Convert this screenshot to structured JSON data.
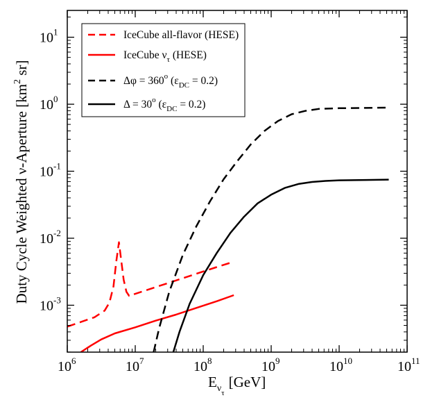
{
  "chart_data": {
    "type": "line",
    "title": "",
    "xlabel": {
      "base": "E",
      "sub": "ν",
      "subsub": "τ",
      "unit": "[GeV]"
    },
    "ylabel": {
      "text": "Duty Cycle Weighted ν-Aperture [km",
      "exp": "2",
      "tail": " sr]"
    },
    "x_log_range": [
      6,
      11
    ],
    "y_log_range": [
      -3.7,
      1.4
    ],
    "x_tick_exponents": [
      "6",
      "7",
      "8",
      "9",
      "10",
      "11"
    ],
    "y_tick_exponents": [
      "-3",
      "-2",
      "-1",
      "0",
      "1"
    ],
    "tick_base": "10",
    "grid": false,
    "legend_position": "top-left",
    "series": [
      {
        "name": "IceCube all-flavor (HESE)",
        "color": "#ff0000",
        "dash": "dashed",
        "points": [
          [
            6.0,
            -3.32
          ],
          [
            6.2,
            -3.25
          ],
          [
            6.4,
            -3.18
          ],
          [
            6.55,
            -3.08
          ],
          [
            6.62,
            -2.96
          ],
          [
            6.68,
            -2.72
          ],
          [
            6.72,
            -2.35
          ],
          [
            6.76,
            -2.06
          ],
          [
            6.79,
            -2.3
          ],
          [
            6.83,
            -2.62
          ],
          [
            6.87,
            -2.8
          ],
          [
            6.91,
            -2.86
          ],
          [
            7.0,
            -2.83
          ],
          [
            7.3,
            -2.73
          ],
          [
            7.6,
            -2.63
          ],
          [
            7.9,
            -2.53
          ],
          [
            8.2,
            -2.43
          ],
          [
            8.45,
            -2.35
          ]
        ]
      },
      {
        "name": "IceCube ν_τ (HESE)",
        "color": "#ff0000",
        "dash": "solid",
        "points": [
          [
            6.2,
            -3.7
          ],
          [
            6.35,
            -3.6
          ],
          [
            6.5,
            -3.51
          ],
          [
            6.7,
            -3.42
          ],
          [
            7.0,
            -3.33
          ],
          [
            7.3,
            -3.23
          ],
          [
            7.6,
            -3.14
          ],
          [
            7.9,
            -3.04
          ],
          [
            8.2,
            -2.94
          ],
          [
            8.45,
            -2.85
          ]
        ]
      },
      {
        "name": "Δφ = 360° (ε_DC = 0.2)",
        "color": "#000000",
        "dash": "dashed",
        "points": [
          [
            7.27,
            -3.7
          ],
          [
            7.35,
            -3.35
          ],
          [
            7.5,
            -2.8
          ],
          [
            7.7,
            -2.25
          ],
          [
            7.9,
            -1.82
          ],
          [
            8.1,
            -1.45
          ],
          [
            8.3,
            -1.12
          ],
          [
            8.5,
            -0.85
          ],
          [
            8.7,
            -0.6
          ],
          [
            8.9,
            -0.4
          ],
          [
            9.1,
            -0.25
          ],
          [
            9.3,
            -0.15
          ],
          [
            9.5,
            -0.1
          ],
          [
            9.7,
            -0.07
          ],
          [
            10.0,
            -0.06
          ],
          [
            10.4,
            -0.055
          ],
          [
            10.73,
            -0.05
          ]
        ]
      },
      {
        "name": "Δ = 30° (ε_DC = 0.2)",
        "color": "#000000",
        "dash": "solid",
        "points": [
          [
            7.56,
            -3.7
          ],
          [
            7.65,
            -3.4
          ],
          [
            7.8,
            -2.98
          ],
          [
            8.0,
            -2.55
          ],
          [
            8.2,
            -2.22
          ],
          [
            8.4,
            -1.92
          ],
          [
            8.6,
            -1.68
          ],
          [
            8.8,
            -1.48
          ],
          [
            9.0,
            -1.35
          ],
          [
            9.2,
            -1.25
          ],
          [
            9.4,
            -1.19
          ],
          [
            9.6,
            -1.16
          ],
          [
            9.8,
            -1.145
          ],
          [
            10.0,
            -1.135
          ],
          [
            10.4,
            -1.13
          ],
          [
            10.73,
            -1.125
          ]
        ]
      }
    ],
    "legend": [
      {
        "label": "IceCube all-flavor (HESE)"
      },
      {
        "label": "IceCube ν",
        "sub": "τ",
        "tail": " (HESE)"
      },
      {
        "label": "Δφ = 360",
        "sup": "o",
        "mid": " (ε",
        "sub": "DC",
        "tail": " = 0.2)"
      },
      {
        "label": "Δ = 30",
        "sup": "o",
        "mid": " (ε",
        "sub": "DC",
        "tail": " = 0.2)"
      }
    ]
  }
}
